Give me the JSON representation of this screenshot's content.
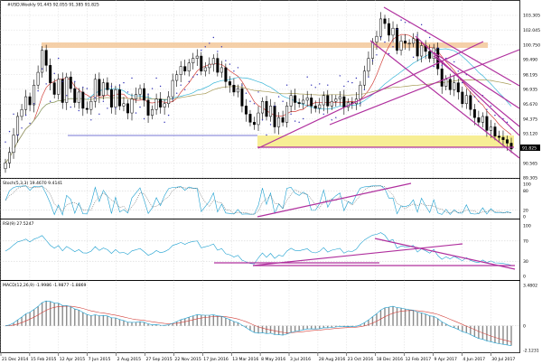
{
  "chart_data": {
    "type": "candlestick",
    "symbol_line": "#USD,Weekly  91.445 92.055 91.385 91.825",
    "price_axis": [
      "103.305",
      "102.045",
      "100.750",
      "99.490",
      "98.195",
      "96.935",
      "95.670",
      "94.375",
      "93.120",
      "91.825",
      "90.565",
      "89.305"
    ],
    "current_price": "91.825",
    "date_labels": [
      "21 Dec 2014",
      "15 Feb 2015",
      "12 Apr 2015",
      "7 Jun 2015",
      "2 Aug 2015",
      "27 Sep 2015",
      "22 Nov 2015",
      "17 Jan 2016",
      "13 Mar 2016",
      "8 May 2016",
      "3 Jul 2016",
      "28 Aug 2016",
      "23 Oct 2016",
      "18 Dec 2016",
      "12 Feb 2017",
      "9 Apr 2017",
      "4 Jun 2017",
      "30 Jul 2017"
    ],
    "stoch": {
      "label": "Stoch(5,3,3) 19.4670 9.4141",
      "axis": [
        "100",
        "80",
        "20",
        "0"
      ]
    },
    "rsi": {
      "label": "RSI(9) 27.5247",
      "axis": [
        "100",
        "70",
        "30",
        "0"
      ]
    },
    "macd": {
      "label": "MACD(12,26,9) -1.9986 -1.9877 -1.8869",
      "axis": [
        "3.4802",
        "0",
        "-2.1231"
      ]
    },
    "closes": [
      90.6,
      91.5,
      93.0,
      94.6,
      95.2,
      96.3,
      95.6,
      97.3,
      98.4,
      100.3,
      99.0,
      97.5,
      96.5,
      97.8,
      95.8,
      98.0,
      97.0,
      95.8,
      96.7,
      95.3,
      95.2,
      95.9,
      97.8,
      96.4,
      97.5,
      96.9,
      95.4,
      96.9,
      95.5,
      95.7,
      94.9,
      96.1,
      96.5,
      97.0,
      96.0,
      94.7,
      95.2,
      96.1,
      95.4,
      95.7,
      96.3,
      97.7,
      98.2,
      98.9,
      98.5,
      99.2,
      99.6,
      99.8,
      98.5,
      98.8,
      99.1,
      99.6,
      98.4,
      98.8,
      97.6,
      97.3,
      96.7,
      97.0,
      95.5,
      94.8,
      94.1,
      93.9,
      94.9,
      95.9,
      94.6,
      95.5,
      93.7,
      94.5,
      94.1,
      95.5,
      96.4,
      95.8,
      95.7,
      96.0,
      96.2,
      95.5,
      95.3,
      95.6,
      96.4,
      95.5,
      95.9,
      96.1,
      96.3,
      95.4,
      95.8,
      95.7,
      96.1,
      97.3,
      98.5,
      99.6,
      101.0,
      101.5,
      103.0,
      102.6,
      101.6,
      102.2,
      100.3,
      101.1,
      100.9,
      100.9,
      101.3,
      99.8,
      100.7,
      100.2,
      99.6,
      100.5,
      98.7,
      97.2,
      97.8,
      96.9,
      97.5,
      96.7,
      95.7,
      96.4,
      95.2,
      94.5,
      94.1,
      94.6,
      93.4,
      93.7,
      92.9,
      92.8,
      92.6,
      92.3,
      91.8
    ]
  }
}
